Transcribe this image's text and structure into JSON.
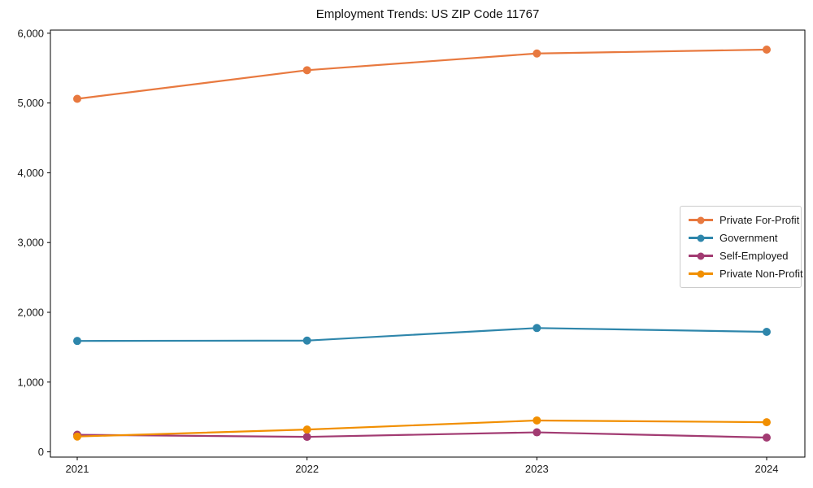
{
  "chart_data": {
    "type": "line",
    "title": "Employment Trends: US ZIP Code 11767",
    "xlabel": "",
    "ylabel": "",
    "x": [
      2021,
      2022,
      2023,
      2024
    ],
    "x_tick_labels": [
      "2021",
      "2022",
      "2023",
      "2024"
    ],
    "y_ticks": [
      0,
      1000,
      2000,
      3000,
      4000,
      5000,
      6000
    ],
    "y_tick_labels": [
      "0",
      "1,000",
      "2,000",
      "3,000",
      "4,000",
      "5,000",
      "6,000"
    ],
    "ylim": [
      -75,
      6045
    ],
    "grid": false,
    "legend_position": "center-right-inside",
    "axis_color": "#000000",
    "background_color": "#ffffff",
    "series": [
      {
        "name": "Private For-Profit",
        "color": "#E8793F",
        "values": [
          5060,
          5470,
          5710,
          5765
        ]
      },
      {
        "name": "Government",
        "color": "#2E86AB",
        "values": [
          1590,
          1595,
          1775,
          1720
        ]
      },
      {
        "name": "Self-Employed",
        "color": "#A23B72",
        "values": [
          245,
          215,
          280,
          205
        ]
      },
      {
        "name": "Private Non-Profit",
        "color": "#F18F01",
        "values": [
          220,
          320,
          450,
          425
        ]
      }
    ]
  }
}
